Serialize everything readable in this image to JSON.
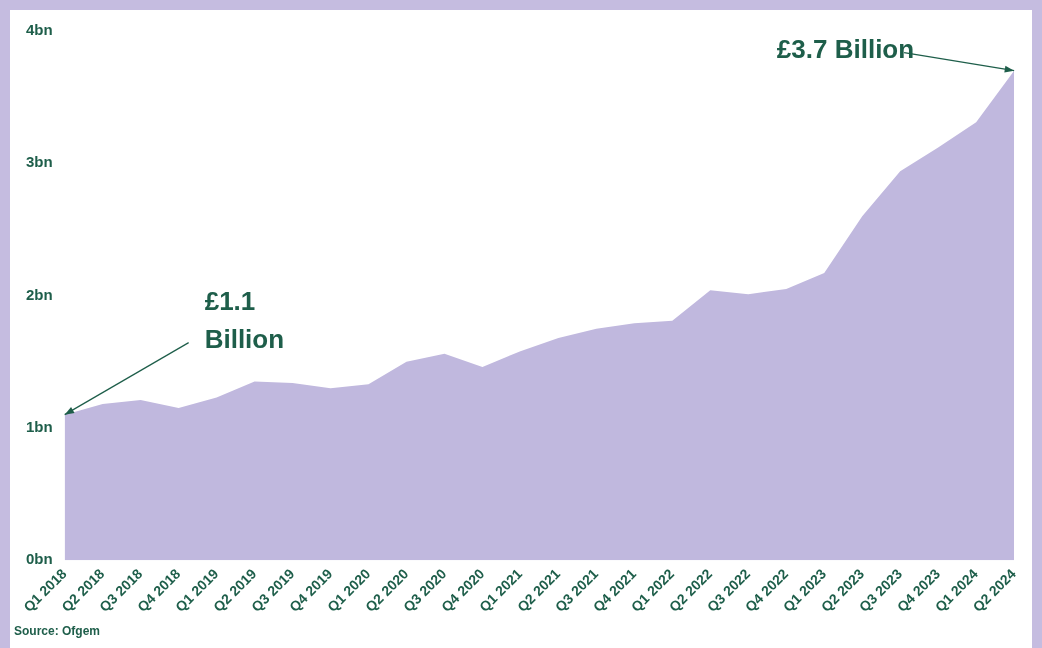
{
  "chart_data": {
    "type": "area",
    "categories": [
      "Q1 2018",
      "Q2 2018",
      "Q3 2018",
      "Q4 2018",
      "Q1 2019",
      "Q2 2019",
      "Q3 2019",
      "Q4 2019",
      "Q1 2020",
      "Q2 2020",
      "Q3 2020",
      "Q4 2020",
      "Q1 2021",
      "Q2 2021",
      "Q3 2021",
      "Q4 2021",
      "Q1 2022",
      "Q2 2022",
      "Q3 2022",
      "Q4 2022",
      "Q1 2023",
      "Q2 2023",
      "Q3 2023",
      "Q4 2023",
      "Q1 2024",
      "Q2 2024"
    ],
    "series": [
      {
        "color": "#c0b8de",
        "values": [
          1.1,
          1.18,
          1.21,
          1.15,
          1.23,
          1.35,
          1.34,
          1.3,
          1.33,
          1.5,
          1.56,
          1.46,
          1.58,
          1.68,
          1.75,
          1.79,
          1.81,
          2.04,
          2.01,
          2.05,
          2.17,
          2.6,
          2.94,
          3.12,
          3.31,
          3.7
        ]
      }
    ],
    "ylim": [
      0,
      4
    ],
    "yticks": [
      {
        "value": 0,
        "label": "0bn"
      },
      {
        "value": 1,
        "label": "1bn"
      },
      {
        "value": 2,
        "label": "2bn"
      },
      {
        "value": 3,
        "label": "3bn"
      },
      {
        "value": 4,
        "label": "4bn"
      }
    ],
    "grid": false,
    "legend": false,
    "annotations": [
      {
        "text": "£1.1\nBillion",
        "x": "Q1 2018",
        "y": 1.1
      },
      {
        "text": "£3.7 Billion",
        "x": "Q2 2024",
        "y": 3.7
      },
      "Source: Ofgem"
    ]
  }
}
